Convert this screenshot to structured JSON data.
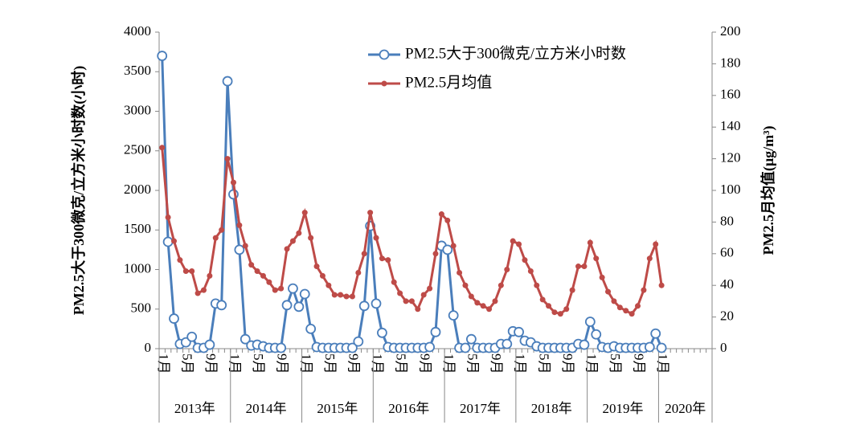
{
  "chart_data": {
    "type": "line",
    "y_label": "PM2.5大于300微克/立方米小时数(小时)",
    "y2_label": "PM2.5月均值(μg/m³)",
    "categories": [
      "1月",
      null,
      null,
      null,
      "5月",
      null,
      null,
      null,
      "9月",
      null,
      null,
      null,
      "1月",
      null,
      null,
      null,
      "5月",
      null,
      null,
      null,
      "9月",
      null,
      null,
      null,
      "1月",
      null,
      null,
      null,
      "5月",
      null,
      null,
      null,
      "9月",
      null,
      null,
      null,
      "1月",
      null,
      null,
      null,
      "5月",
      null,
      null,
      null,
      "9月",
      null,
      null,
      null,
      "1月",
      null,
      null,
      null,
      "5月",
      null,
      null,
      null,
      "9月",
      null,
      null,
      null,
      "1月",
      null,
      null,
      null,
      "5月",
      null,
      null,
      null,
      "9月",
      null,
      null,
      null,
      "1月",
      null,
      null,
      null,
      "5月",
      null,
      null,
      null,
      "9月",
      null,
      null,
      null,
      "1月",
      null,
      null,
      null,
      null,
      null,
      null,
      null,
      null
    ],
    "years": [
      "2013年",
      "2014年",
      "2015年",
      "2016年",
      "2017年",
      "2018年",
      "2019年",
      "2020年"
    ],
    "series": [
      {
        "name": "PM2.5大于300微克/立方米小时数",
        "color": "#4a7ebb",
        "marker": "open-circle",
        "values": [
          3700,
          1350,
          380,
          60,
          80,
          150,
          10,
          10,
          50,
          570,
          550,
          3380,
          1950,
          1250,
          120,
          40,
          50,
          30,
          10,
          10,
          10,
          550,
          760,
          530,
          690,
          250,
          20,
          10,
          10,
          10,
          10,
          10,
          10,
          90,
          540,
          1550,
          570,
          200,
          20,
          10,
          10,
          10,
          10,
          10,
          10,
          20,
          210,
          1300,
          1250,
          420,
          10,
          10,
          120,
          10,
          10,
          10,
          10,
          60,
          60,
          220,
          210,
          100,
          80,
          30,
          10,
          10,
          10,
          10,
          10,
          10,
          60,
          50,
          340,
          180,
          20,
          10,
          30,
          10,
          10,
          10,
          10,
          10,
          20,
          190,
          10,
          null,
          null,
          null,
          null,
          null,
          null,
          null,
          null
        ]
      },
      {
        "name": "PM2.5月均值",
        "color": "#be4b48",
        "marker": "dot",
        "axis": "y2",
        "values": [
          127,
          83,
          68,
          56,
          49,
          49,
          35,
          37,
          46,
          70,
          75,
          120,
          105,
          78,
          65,
          53,
          49,
          46,
          42,
          37,
          38,
          63,
          68,
          73,
          86,
          70,
          52,
          46,
          40,
          34,
          34,
          33,
          33,
          48,
          60,
          86,
          70,
          57,
          56,
          42,
          35,
          30,
          30,
          25,
          34,
          38,
          60,
          85,
          81,
          65,
          48,
          40,
          33,
          29,
          27,
          25,
          30,
          40,
          50,
          68,
          66,
          56,
          49,
          40,
          31,
          27,
          23,
          22,
          25,
          37,
          52,
          52,
          67,
          57,
          45,
          36,
          30,
          26,
          24,
          22,
          27,
          37,
          57,
          66,
          40,
          null,
          null,
          null,
          null,
          null,
          null,
          null,
          null
        ]
      }
    ],
    "ylim": [
      0,
      4000
    ],
    "yticks": [
      0,
      500,
      1000,
      1500,
      2000,
      2500,
      3000,
      3500,
      4000
    ],
    "y2lim": [
      0,
      200
    ],
    "y2ticks": [
      0,
      20,
      40,
      60,
      80,
      100,
      120,
      140,
      160,
      180,
      200
    ],
    "legend": "top-right"
  }
}
